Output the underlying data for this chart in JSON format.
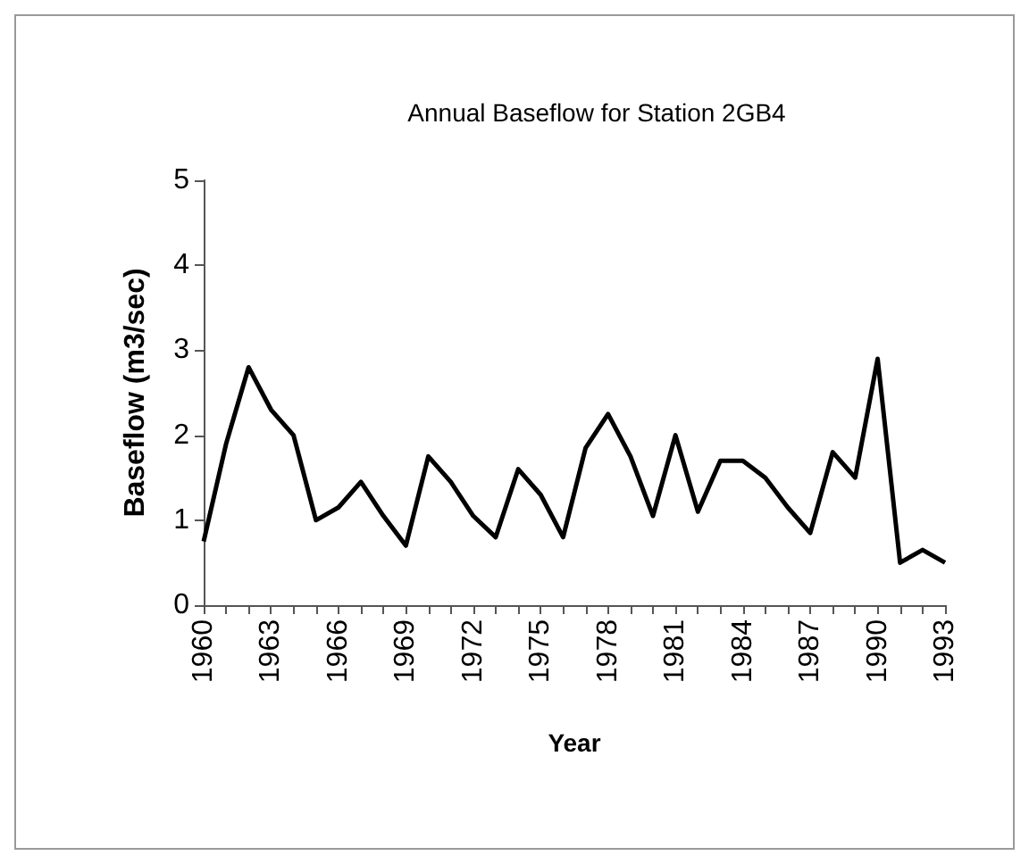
{
  "chart_data": {
    "type": "line",
    "title": "Annual Baseflow for Station 2GB4",
    "xlabel": "Year",
    "ylabel": "Baseflow (m3/sec)",
    "categories": [
      "1960",
      null,
      null,
      "1963",
      null,
      null,
      "1966",
      null,
      null,
      "1969",
      null,
      null,
      "1972",
      null,
      null,
      "1975",
      null,
      null,
      "1978",
      null,
      null,
      "1981",
      null,
      null,
      "1984",
      null,
      null,
      "1987",
      null,
      null,
      "1990",
      null,
      null,
      "1993"
    ],
    "series": [
      {
        "color": "#000000",
        "values": [
          0.75,
          1.9,
          2.8,
          2.3,
          2.0,
          1.0,
          1.15,
          1.45,
          1.05,
          0.7,
          1.75,
          1.45,
          1.05,
          0.8,
          1.6,
          1.3,
          0.8,
          1.85,
          2.25,
          1.75,
          1.05,
          2.0,
          1.1,
          1.7,
          1.7,
          1.5,
          1.15,
          0.85,
          1.8,
          1.5,
          2.9,
          0.5,
          0.65,
          0.5
        ]
      }
    ],
    "ylim": [
      0,
      5
    ],
    "yticks": [
      0,
      1,
      2,
      3,
      4,
      5
    ],
    "grid": false,
    "marker": "none",
    "line_style": "solid"
  }
}
